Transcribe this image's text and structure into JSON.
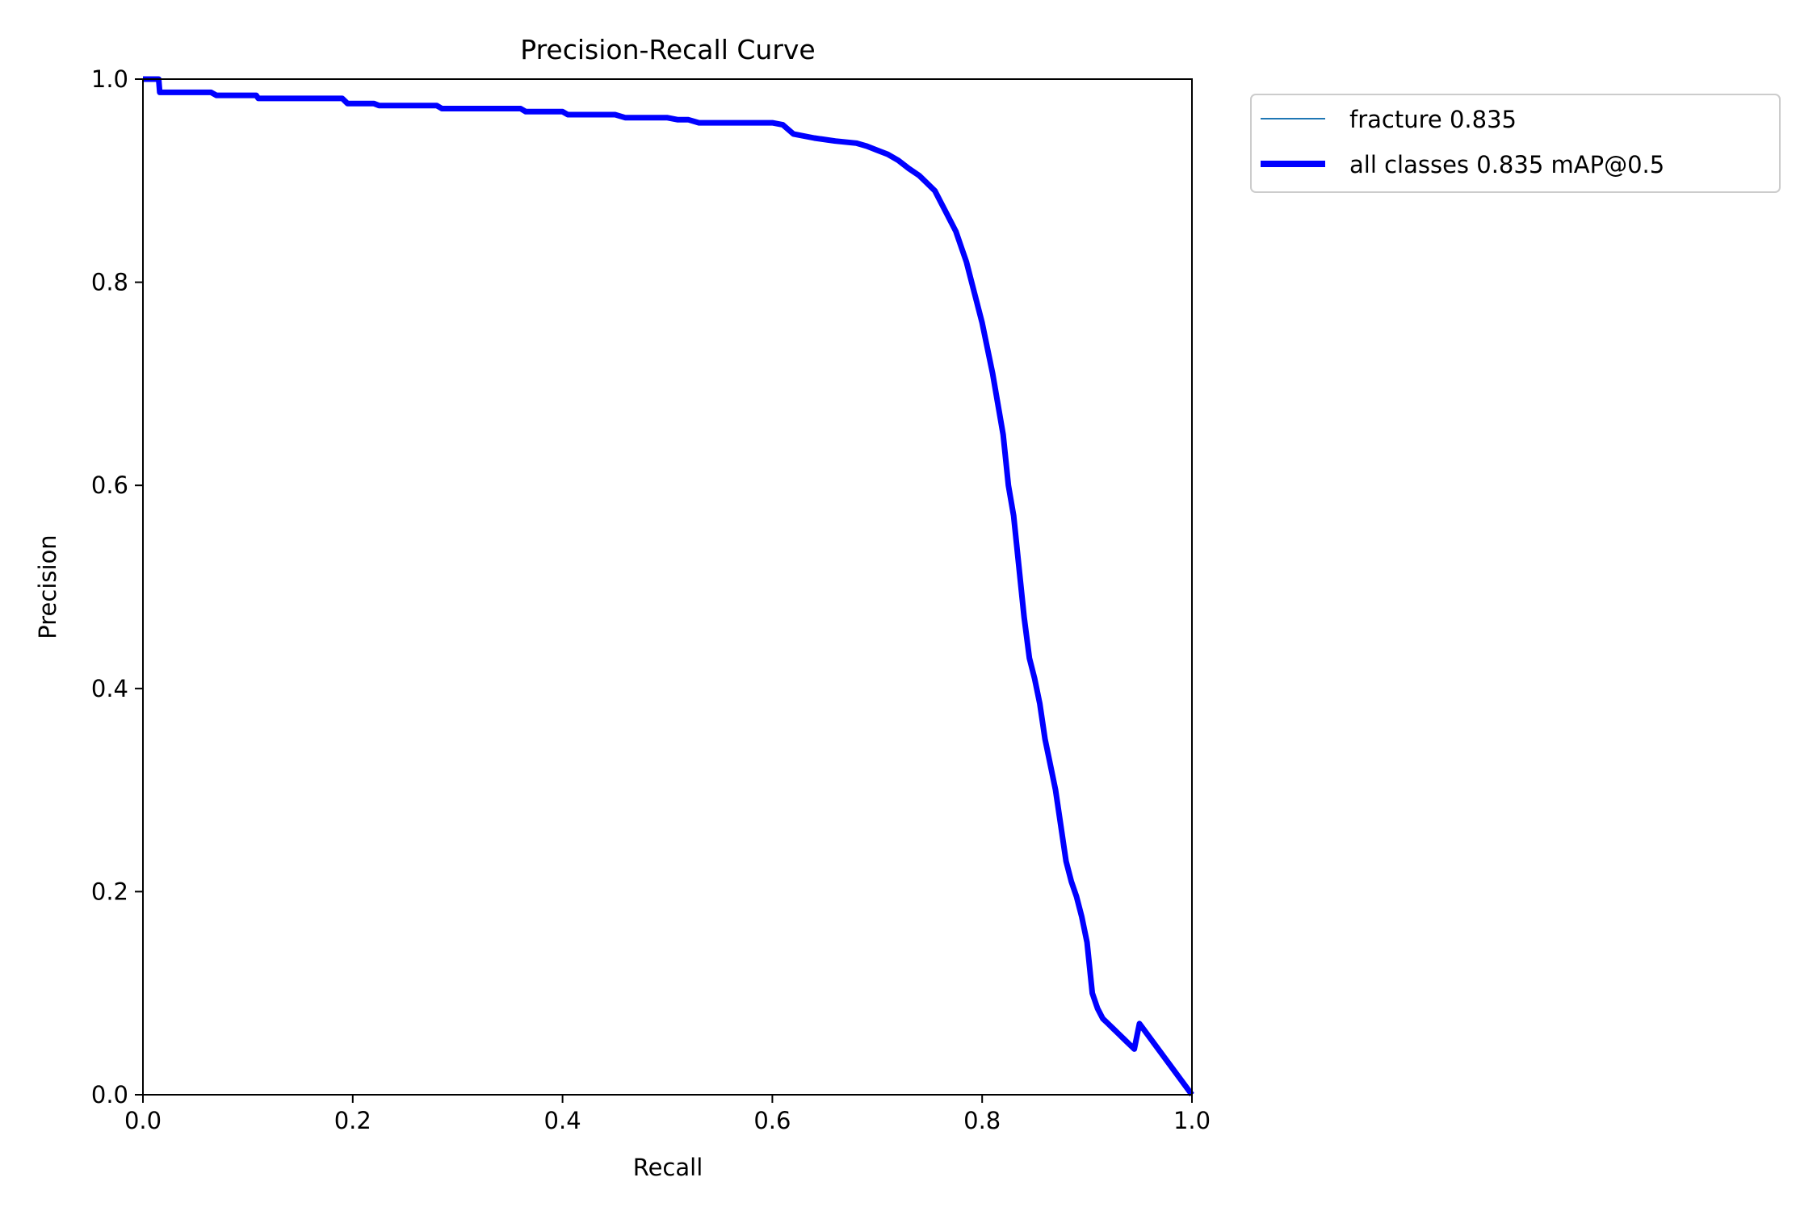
{
  "chart_data": {
    "type": "line",
    "title": "Precision-Recall Curve",
    "xlabel": "Recall",
    "ylabel": "Precision",
    "xlim": [
      0,
      1
    ],
    "ylim": [
      0,
      1
    ],
    "xticks": [
      "0.0",
      "0.2",
      "0.4",
      "0.6",
      "0.8",
      "1.0"
    ],
    "yticks": [
      "0.0",
      "0.2",
      "0.4",
      "0.6",
      "0.8",
      "1.0"
    ],
    "grid": false,
    "legend_placement": "outside-top-right",
    "series": [
      {
        "name": "fracture 0.835",
        "color": "#1f77b4",
        "x": [
          0.0,
          0.015,
          0.016,
          0.02,
          0.065,
          0.07,
          0.108,
          0.11,
          0.19,
          0.195,
          0.22,
          0.225,
          0.28,
          0.285,
          0.36,
          0.365,
          0.4,
          0.405,
          0.45,
          0.46,
          0.5,
          0.51,
          0.52,
          0.53,
          0.6,
          0.61,
          0.62,
          0.64,
          0.66,
          0.68,
          0.69,
          0.7,
          0.71,
          0.72,
          0.73,
          0.74,
          0.75,
          0.755,
          0.76,
          0.765,
          0.77,
          0.775,
          0.78,
          0.785,
          0.79,
          0.795,
          0.8,
          0.805,
          0.81,
          0.815,
          0.82,
          0.825,
          0.83,
          0.835,
          0.84,
          0.845,
          0.85,
          0.855,
          0.86,
          0.865,
          0.87,
          0.875,
          0.88,
          0.885,
          0.89,
          0.895,
          0.9,
          0.905,
          0.91,
          0.915,
          0.92,
          0.925,
          0.93,
          0.935,
          0.94,
          0.945,
          0.95,
          1.0
        ],
        "y": [
          1.0,
          1.0,
          0.987,
          0.987,
          0.987,
          0.984,
          0.984,
          0.981,
          0.981,
          0.976,
          0.976,
          0.974,
          0.974,
          0.971,
          0.971,
          0.968,
          0.968,
          0.965,
          0.965,
          0.962,
          0.962,
          0.96,
          0.96,
          0.957,
          0.957,
          0.955,
          0.946,
          0.942,
          0.939,
          0.937,
          0.934,
          0.93,
          0.926,
          0.92,
          0.912,
          0.905,
          0.895,
          0.89,
          0.88,
          0.87,
          0.86,
          0.85,
          0.835,
          0.82,
          0.8,
          0.78,
          0.76,
          0.735,
          0.71,
          0.68,
          0.65,
          0.6,
          0.57,
          0.52,
          0.47,
          0.43,
          0.41,
          0.385,
          0.35,
          0.325,
          0.3,
          0.265,
          0.23,
          0.21,
          0.195,
          0.175,
          0.15,
          0.1,
          0.085,
          0.075,
          0.07,
          0.065,
          0.06,
          0.055,
          0.05,
          0.045,
          0.07,
          0.0
        ]
      },
      {
        "name": "all classes 0.835 mAP@0.5",
        "color": "#0000ff",
        "x": [
          0.0,
          0.015,
          0.016,
          0.02,
          0.065,
          0.07,
          0.108,
          0.11,
          0.19,
          0.195,
          0.22,
          0.225,
          0.28,
          0.285,
          0.36,
          0.365,
          0.4,
          0.405,
          0.45,
          0.46,
          0.5,
          0.51,
          0.52,
          0.53,
          0.6,
          0.61,
          0.62,
          0.64,
          0.66,
          0.68,
          0.69,
          0.7,
          0.71,
          0.72,
          0.73,
          0.74,
          0.75,
          0.755,
          0.76,
          0.765,
          0.77,
          0.775,
          0.78,
          0.785,
          0.79,
          0.795,
          0.8,
          0.805,
          0.81,
          0.815,
          0.82,
          0.825,
          0.83,
          0.835,
          0.84,
          0.845,
          0.85,
          0.855,
          0.86,
          0.865,
          0.87,
          0.875,
          0.88,
          0.885,
          0.89,
          0.895,
          0.9,
          0.905,
          0.91,
          0.915,
          0.92,
          0.925,
          0.93,
          0.935,
          0.94,
          0.945,
          0.95,
          1.0
        ],
        "y": [
          1.0,
          1.0,
          0.987,
          0.987,
          0.987,
          0.984,
          0.984,
          0.981,
          0.981,
          0.976,
          0.976,
          0.974,
          0.974,
          0.971,
          0.971,
          0.968,
          0.968,
          0.965,
          0.965,
          0.962,
          0.962,
          0.96,
          0.96,
          0.957,
          0.957,
          0.955,
          0.946,
          0.942,
          0.939,
          0.937,
          0.934,
          0.93,
          0.926,
          0.92,
          0.912,
          0.905,
          0.895,
          0.89,
          0.88,
          0.87,
          0.86,
          0.85,
          0.835,
          0.82,
          0.8,
          0.78,
          0.76,
          0.735,
          0.71,
          0.68,
          0.65,
          0.6,
          0.57,
          0.52,
          0.47,
          0.43,
          0.41,
          0.385,
          0.35,
          0.325,
          0.3,
          0.265,
          0.23,
          0.21,
          0.195,
          0.175,
          0.15,
          0.1,
          0.085,
          0.075,
          0.07,
          0.065,
          0.06,
          0.055,
          0.05,
          0.045,
          0.07,
          0.0
        ]
      }
    ]
  }
}
